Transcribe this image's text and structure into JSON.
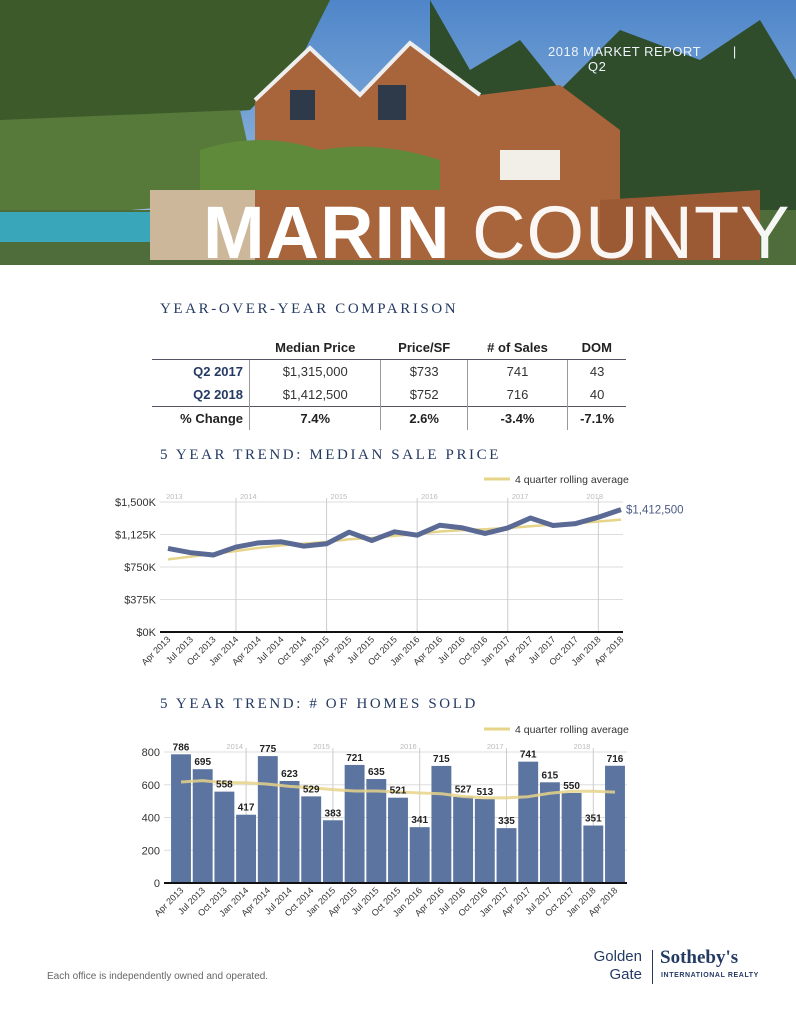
{
  "header": {
    "report_label": "2018 MARKET REPORT",
    "divider": "|",
    "quarter": "Q2",
    "title_bold": "MARIN",
    "title_light": "COUNTY"
  },
  "comparison": {
    "heading": "YEAR-OVER-YEAR COMPARISON",
    "columns": [
      "",
      "Median Price",
      "Price/SF",
      "# of Sales",
      "DOM"
    ],
    "rows": [
      {
        "label": "Q2 2017",
        "values": [
          "$1,315,000",
          "$733",
          "741",
          "43"
        ]
      },
      {
        "label": "Q2 2018",
        "values": [
          "$1,412,500",
          "$752",
          "716",
          "40"
        ]
      },
      {
        "label": "% Change",
        "values": [
          "7.4%",
          "2.6%",
          "-3.4%",
          "-7.1%"
        ]
      }
    ]
  },
  "chart_data": [
    {
      "type": "line",
      "title": "5 YEAR TREND: MEDIAN SALE PRICE",
      "legend": "4 quarter rolling average",
      "legend_position": "top-right",
      "grid": true,
      "ylim": [
        0,
        1500
      ],
      "yticks": [
        "$0K",
        "$375K",
        "$750K",
        "$1,125K",
        "$1,500K"
      ],
      "year_labels": [
        "2013",
        "2014",
        "2015",
        "2016",
        "2017",
        "2018"
      ],
      "categories": [
        "Apr 2013",
        "Jul 2013",
        "Oct 2013",
        "Jan 2014",
        "Apr 2014",
        "Jul 2014",
        "Oct 2014",
        "Jan 2015",
        "Apr 2015",
        "Jul 2015",
        "Oct 2015",
        "Jan 2016",
        "Apr 2016",
        "Jul 2016",
        "Oct 2016",
        "Jan 2017",
        "Apr 2017",
        "Jul 2017",
        "Oct 2017",
        "Jan 2018",
        "Apr 2018"
      ],
      "series": [
        {
          "values": [
            964,
            915,
            888,
            980,
            1029,
            1041,
            991,
            1018,
            1152,
            1056,
            1156,
            1117,
            1232,
            1201,
            1137,
            1201,
            1315,
            1229,
            1251,
            1324,
            1412.5
          ],
          "color": "#5a6a94"
        },
        {
          "name": "4 quarter rolling average",
          "values": [
            838,
            870,
            900,
            935,
            970,
            1000,
            1020,
            1040,
            1070,
            1085,
            1110,
            1130,
            1160,
            1175,
            1185,
            1200,
            1220,
            1240,
            1255,
            1275,
            1297
          ],
          "color": "#e6d48a"
        }
      ],
      "end_label": "$1,412,500"
    },
    {
      "type": "bar",
      "title": "5 YEAR TREND: # OF HOMES SOLD",
      "legend": "4 quarter rolling average",
      "legend_position": "top-right",
      "grid": true,
      "ylim": [
        0,
        800
      ],
      "yticks": [
        "0",
        "200",
        "400",
        "600",
        "800"
      ],
      "year_labels": [
        "2014",
        "2015",
        "2016",
        "2017",
        "2018"
      ],
      "categories": [
        "Apr 2013",
        "Jul 2013",
        "Oct 2013",
        "Jan 2014",
        "Apr 2014",
        "Jul 2014",
        "Oct 2014",
        "Jan 2015",
        "Apr 2015",
        "Jul 2015",
        "Oct 2015",
        "Jan 2016",
        "Apr 2016",
        "Jul 2016",
        "Oct 2016",
        "Jan 2017",
        "Apr 2017",
        "Jul 2017",
        "Oct 2017",
        "Jan 2018",
        "Apr 2018"
      ],
      "series": [
        {
          "values": [
            786,
            695,
            558,
            417,
            775,
            623,
            529,
            383,
            721,
            635,
            521,
            341,
            715,
            527,
            513,
            335,
            741,
            615,
            550,
            351,
            716
          ],
          "color": "#5b75a0"
        },
        {
          "name": "4 quarter rolling average",
          "values": [
            617,
            625,
            612,
            612,
            604,
            590,
            582,
            570,
            562,
            562,
            556,
            550,
            545,
            528,
            520,
            520,
            527,
            548,
            560,
            560,
            555
          ],
          "color": "#e6d48a"
        }
      ]
    }
  ],
  "footer": {
    "disclaimer": "Each office is independently owned and operated.",
    "logo_left_1": "Golden",
    "logo_left_2": "Gate",
    "logo_brand": "Sotheby's",
    "logo_sub": "INTERNATIONAL REALTY"
  }
}
